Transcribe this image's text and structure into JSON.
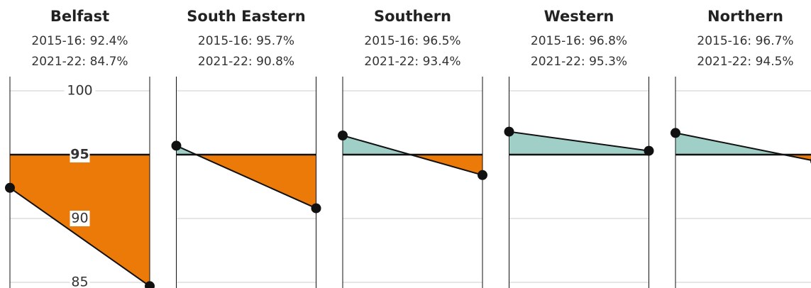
{
  "chart_data": {
    "type": "area",
    "ylim": [
      84.5,
      101
    ],
    "yticks": [
      85,
      90,
      95,
      100
    ],
    "reference": 95,
    "grid": true,
    "below_color": "#ec7a08",
    "above_color": "#9fcfc7",
    "panels": [
      {
        "title": "Belfast",
        "values": [
          92.4,
          84.7
        ],
        "value_labels": [
          "2015-16: 92.4%",
          "2021-22: 84.7%"
        ]
      },
      {
        "title": "South Eastern",
        "values": [
          95.7,
          90.8
        ],
        "value_labels": [
          "2015-16: 95.7%",
          "2021-22: 90.8%"
        ]
      },
      {
        "title": "Southern",
        "values": [
          96.5,
          93.4
        ],
        "value_labels": [
          "2015-16: 96.5%",
          "2021-22: 93.4%"
        ]
      },
      {
        "title": "Western",
        "values": [
          96.8,
          95.3
        ],
        "value_labels": [
          "2015-16: 96.8%",
          "2021-22: 95.3%"
        ]
      },
      {
        "title": "Northern",
        "values": [
          96.7,
          94.5
        ],
        "value_labels": [
          "2015-16: 96.7%",
          "2021-22: 94.5%"
        ]
      }
    ]
  }
}
